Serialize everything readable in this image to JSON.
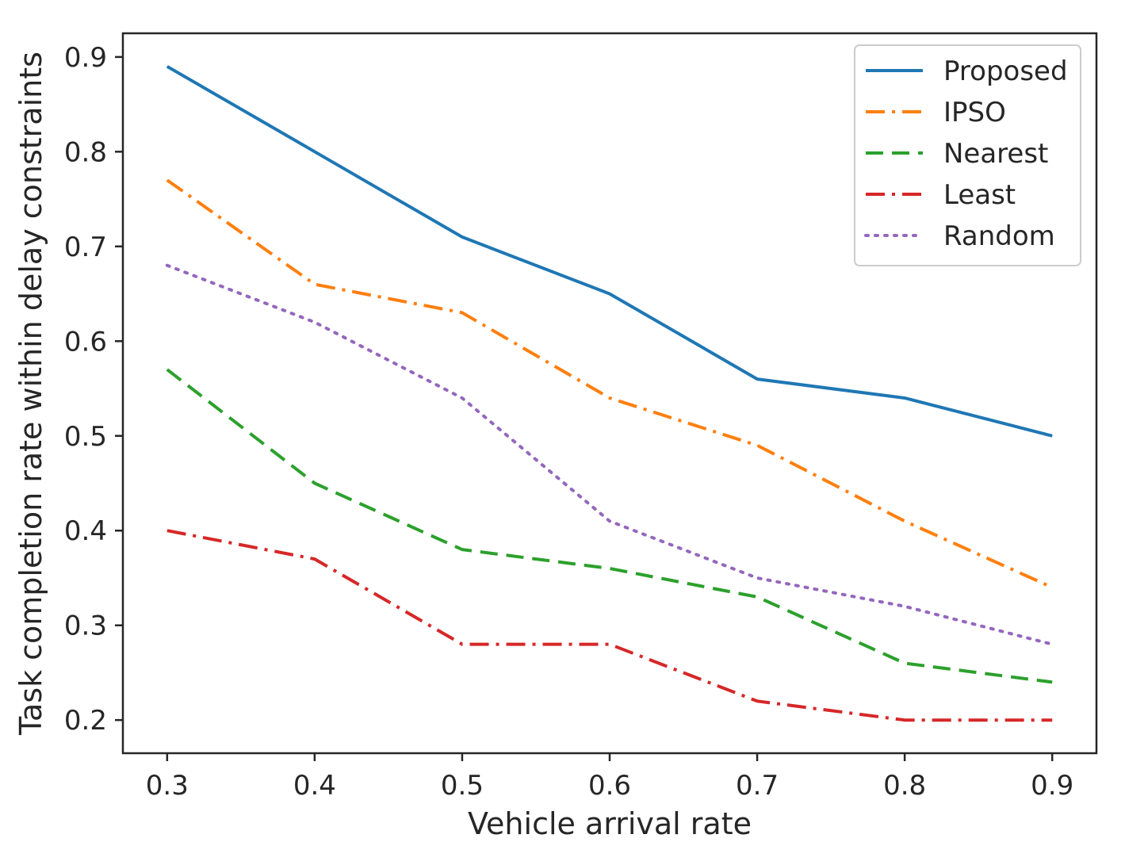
{
  "chart_data": {
    "type": "line",
    "title": "",
    "xlabel": "Vehicle arrival rate",
    "ylabel": "Task completion rate within delay constraints",
    "x": [
      0.3,
      0.4,
      0.5,
      0.6,
      0.7,
      0.8,
      0.9
    ],
    "xlim": [
      0.27,
      0.93
    ],
    "ylim": [
      0.165,
      0.925
    ],
    "x_ticks": [
      0.3,
      0.4,
      0.5,
      0.6,
      0.7,
      0.8,
      0.9
    ],
    "x_tick_labels": [
      "0.3",
      "0.4",
      "0.5",
      "0.6",
      "0.7",
      "0.8",
      "0.9"
    ],
    "y_ticks": [
      0.2,
      0.3,
      0.4,
      0.5,
      0.6,
      0.7,
      0.8,
      0.9
    ],
    "y_tick_labels": [
      "0.2",
      "0.3",
      "0.4",
      "0.5",
      "0.6",
      "0.7",
      "0.8",
      "0.9"
    ],
    "grid": false,
    "legend_position": "top-right",
    "series": [
      {
        "name": "Proposed",
        "style": "solid",
        "color": "#1f77b4",
        "values": [
          0.89,
          0.8,
          0.71,
          0.65,
          0.56,
          0.54,
          0.5
        ]
      },
      {
        "name": "IPSO",
        "style": "dashdot",
        "color": "#ff7f0e",
        "values": [
          0.77,
          0.66,
          0.63,
          0.54,
          0.49,
          0.41,
          0.34
        ]
      },
      {
        "name": "Nearest",
        "style": "dashed",
        "color": "#2ca02c",
        "values": [
          0.57,
          0.45,
          0.38,
          0.36,
          0.33,
          0.26,
          0.24
        ]
      },
      {
        "name": "Least",
        "style": "dashdot",
        "color": "#d62728",
        "values": [
          0.4,
          0.37,
          0.28,
          0.28,
          0.22,
          0.2,
          0.2
        ]
      },
      {
        "name": "Random",
        "style": "dotted",
        "color": "#9467bd",
        "values": [
          0.68,
          0.62,
          0.54,
          0.41,
          0.35,
          0.32,
          0.28
        ]
      }
    ]
  }
}
